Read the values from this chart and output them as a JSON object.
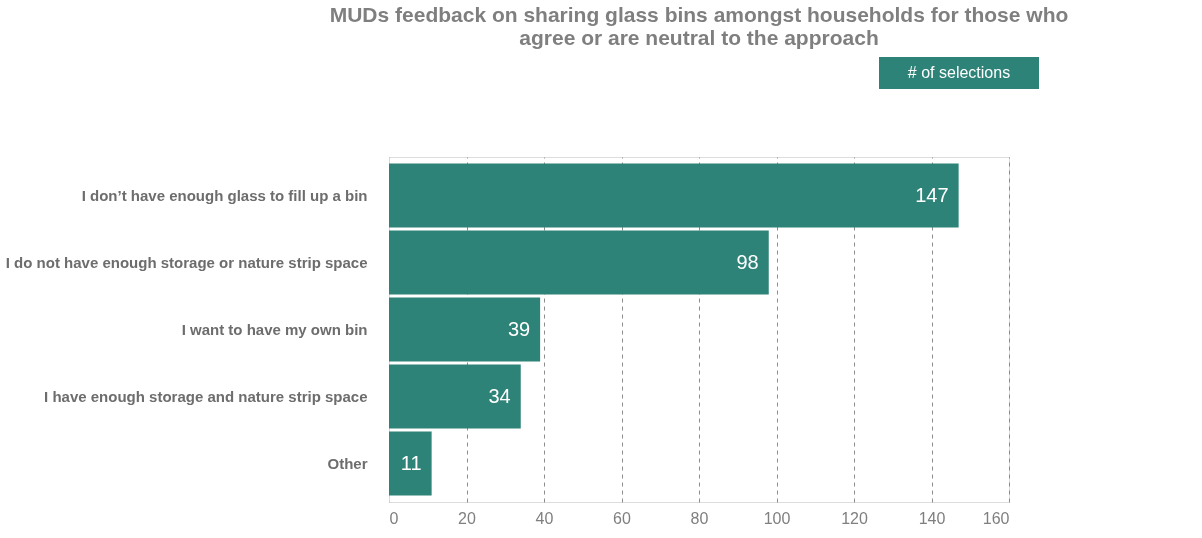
{
  "chart_data": {
    "type": "bar",
    "orientation": "horizontal",
    "title": "MUDs feedback on sharing glass bins amongst households for those who agree or are neutral to the approach",
    "categories": [
      "I don’t have enough glass to fill up a bin",
      "I do not have enough storage or nature strip space",
      "I want to have my own bin",
      "I have enough storage and nature strip space",
      "Other"
    ],
    "values": [
      147,
      98,
      39,
      34,
      11
    ],
    "color": "#2e8378",
    "xlim": [
      0,
      160
    ],
    "xticks": [
      0,
      20,
      40,
      60,
      80,
      100,
      120,
      140,
      160
    ],
    "grid": "x",
    "data_labels": true,
    "annotations": [
      "# of selections"
    ]
  }
}
